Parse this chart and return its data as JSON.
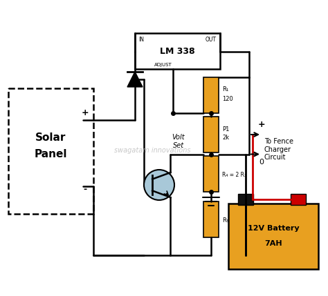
{
  "bg_color": "#ffffff",
  "watermark": "swagatam innovations",
  "lm338_label": "LM 338",
  "lm338_in": "IN",
  "lm338_out": "OUT",
  "lm338_adj": "ADJUST",
  "solar_label1": "Solar",
  "solar_label2": "Panel",
  "battery_label1": "12V Battery",
  "battery_label2": "7AH",
  "battery_color": "#E8A020",
  "resistor_color": "#E8A020",
  "r1_label": "R₁\n120",
  "p1_label": "P1\n2k",
  "r4_label": "R₄ = 2 R₃",
  "r3_label": "R₃",
  "volt_set": "Volt\nSet",
  "fence_line1": "To Fence",
  "fence_line2": "Charger",
  "fence_line3": "Circuit",
  "plus_sym": "+",
  "zero_sym": "0",
  "wire_color": "#000000",
  "red_wire_color": "#cc0000",
  "transistor_fill": "#a8c8d8",
  "ground_sym": "⏚"
}
